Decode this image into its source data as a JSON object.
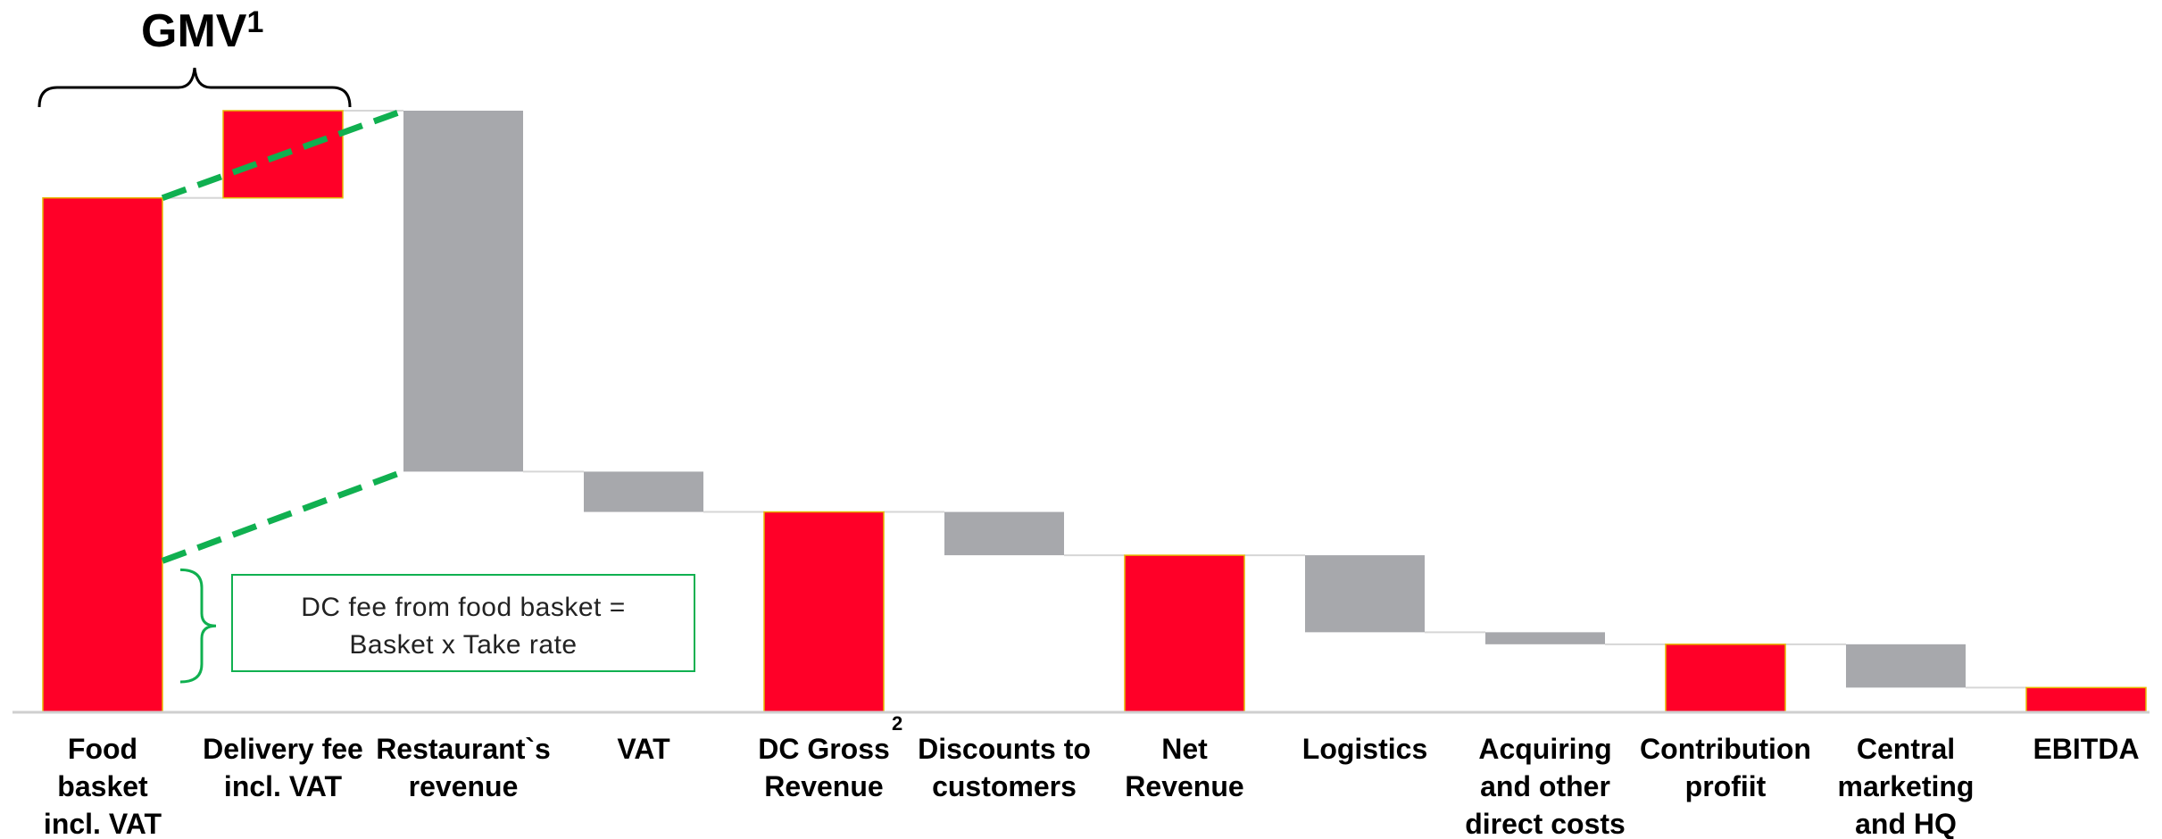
{
  "chart_data": {
    "type": "bar",
    "subtype": "waterfall",
    "title": "",
    "xlabel": "",
    "ylabel": "",
    "ylim": [
      0,
      100
    ],
    "grid": false,
    "legend": "none",
    "categories": [
      "Food basket incl. VAT",
      "Delivery fee incl. VAT",
      "Restaurant`s revenue",
      "VAT",
      "DC Gross Revenue",
      "Discounts to customers",
      "Net Revenue",
      "Logistics",
      "Acquiring and other direct costs",
      "Contribution profiit",
      "Central marketing and HQ",
      "EBITDA"
    ],
    "label_lines": [
      [
        "Food",
        "basket",
        "incl. VAT"
      ],
      [
        "Delivery fee",
        "incl. VAT"
      ],
      [
        "Restaurant`s",
        "revenue"
      ],
      [
        "VAT"
      ],
      [
        "DC Gross",
        "Revenue"
      ],
      [
        "Discounts to",
        "customers"
      ],
      [
        "Net",
        "Revenue"
      ],
      [
        "Logistics"
      ],
      [
        "Acquiring",
        "and other",
        "direct costs"
      ],
      [
        "Contribution",
        "profiit"
      ],
      [
        "Central",
        "marketing",
        "and HQ"
      ],
      [
        "EBITDA"
      ]
    ],
    "bars": [
      {
        "start": 0,
        "end": 85.5,
        "kind": "total"
      },
      {
        "start": 85.5,
        "end": 100,
        "kind": "total"
      },
      {
        "start": 100,
        "end": 40,
        "kind": "change"
      },
      {
        "start": 40,
        "end": 33.3,
        "kind": "change"
      },
      {
        "start": 0,
        "end": 33.3,
        "kind": "total"
      },
      {
        "start": 33.3,
        "end": 26.1,
        "kind": "change"
      },
      {
        "start": 0,
        "end": 26.1,
        "kind": "total"
      },
      {
        "start": 26.1,
        "end": 13.3,
        "kind": "change"
      },
      {
        "start": 13.3,
        "end": 11.3,
        "kind": "change"
      },
      {
        "start": 0,
        "end": 11.3,
        "kind": "total"
      },
      {
        "start": 11.3,
        "end": 4.1,
        "kind": "change"
      },
      {
        "start": 0,
        "end": 4.1,
        "kind": "total"
      }
    ],
    "colors": {
      "total": "#ff0028",
      "total_border": "#e6b800",
      "change": "#a7a8ac",
      "connector": "#d6d6d6",
      "axis": "#cfcfcf",
      "dash": "#10b050",
      "box": "#10b050",
      "bracket": "#000000"
    },
    "annotations": {
      "gmv_title": "GMV",
      "gmv_sup": "1",
      "footnote_marker": "2",
      "dc_fee_lines": [
        "DC fee from food basket =",
        "Basket x Take rate"
      ]
    }
  }
}
